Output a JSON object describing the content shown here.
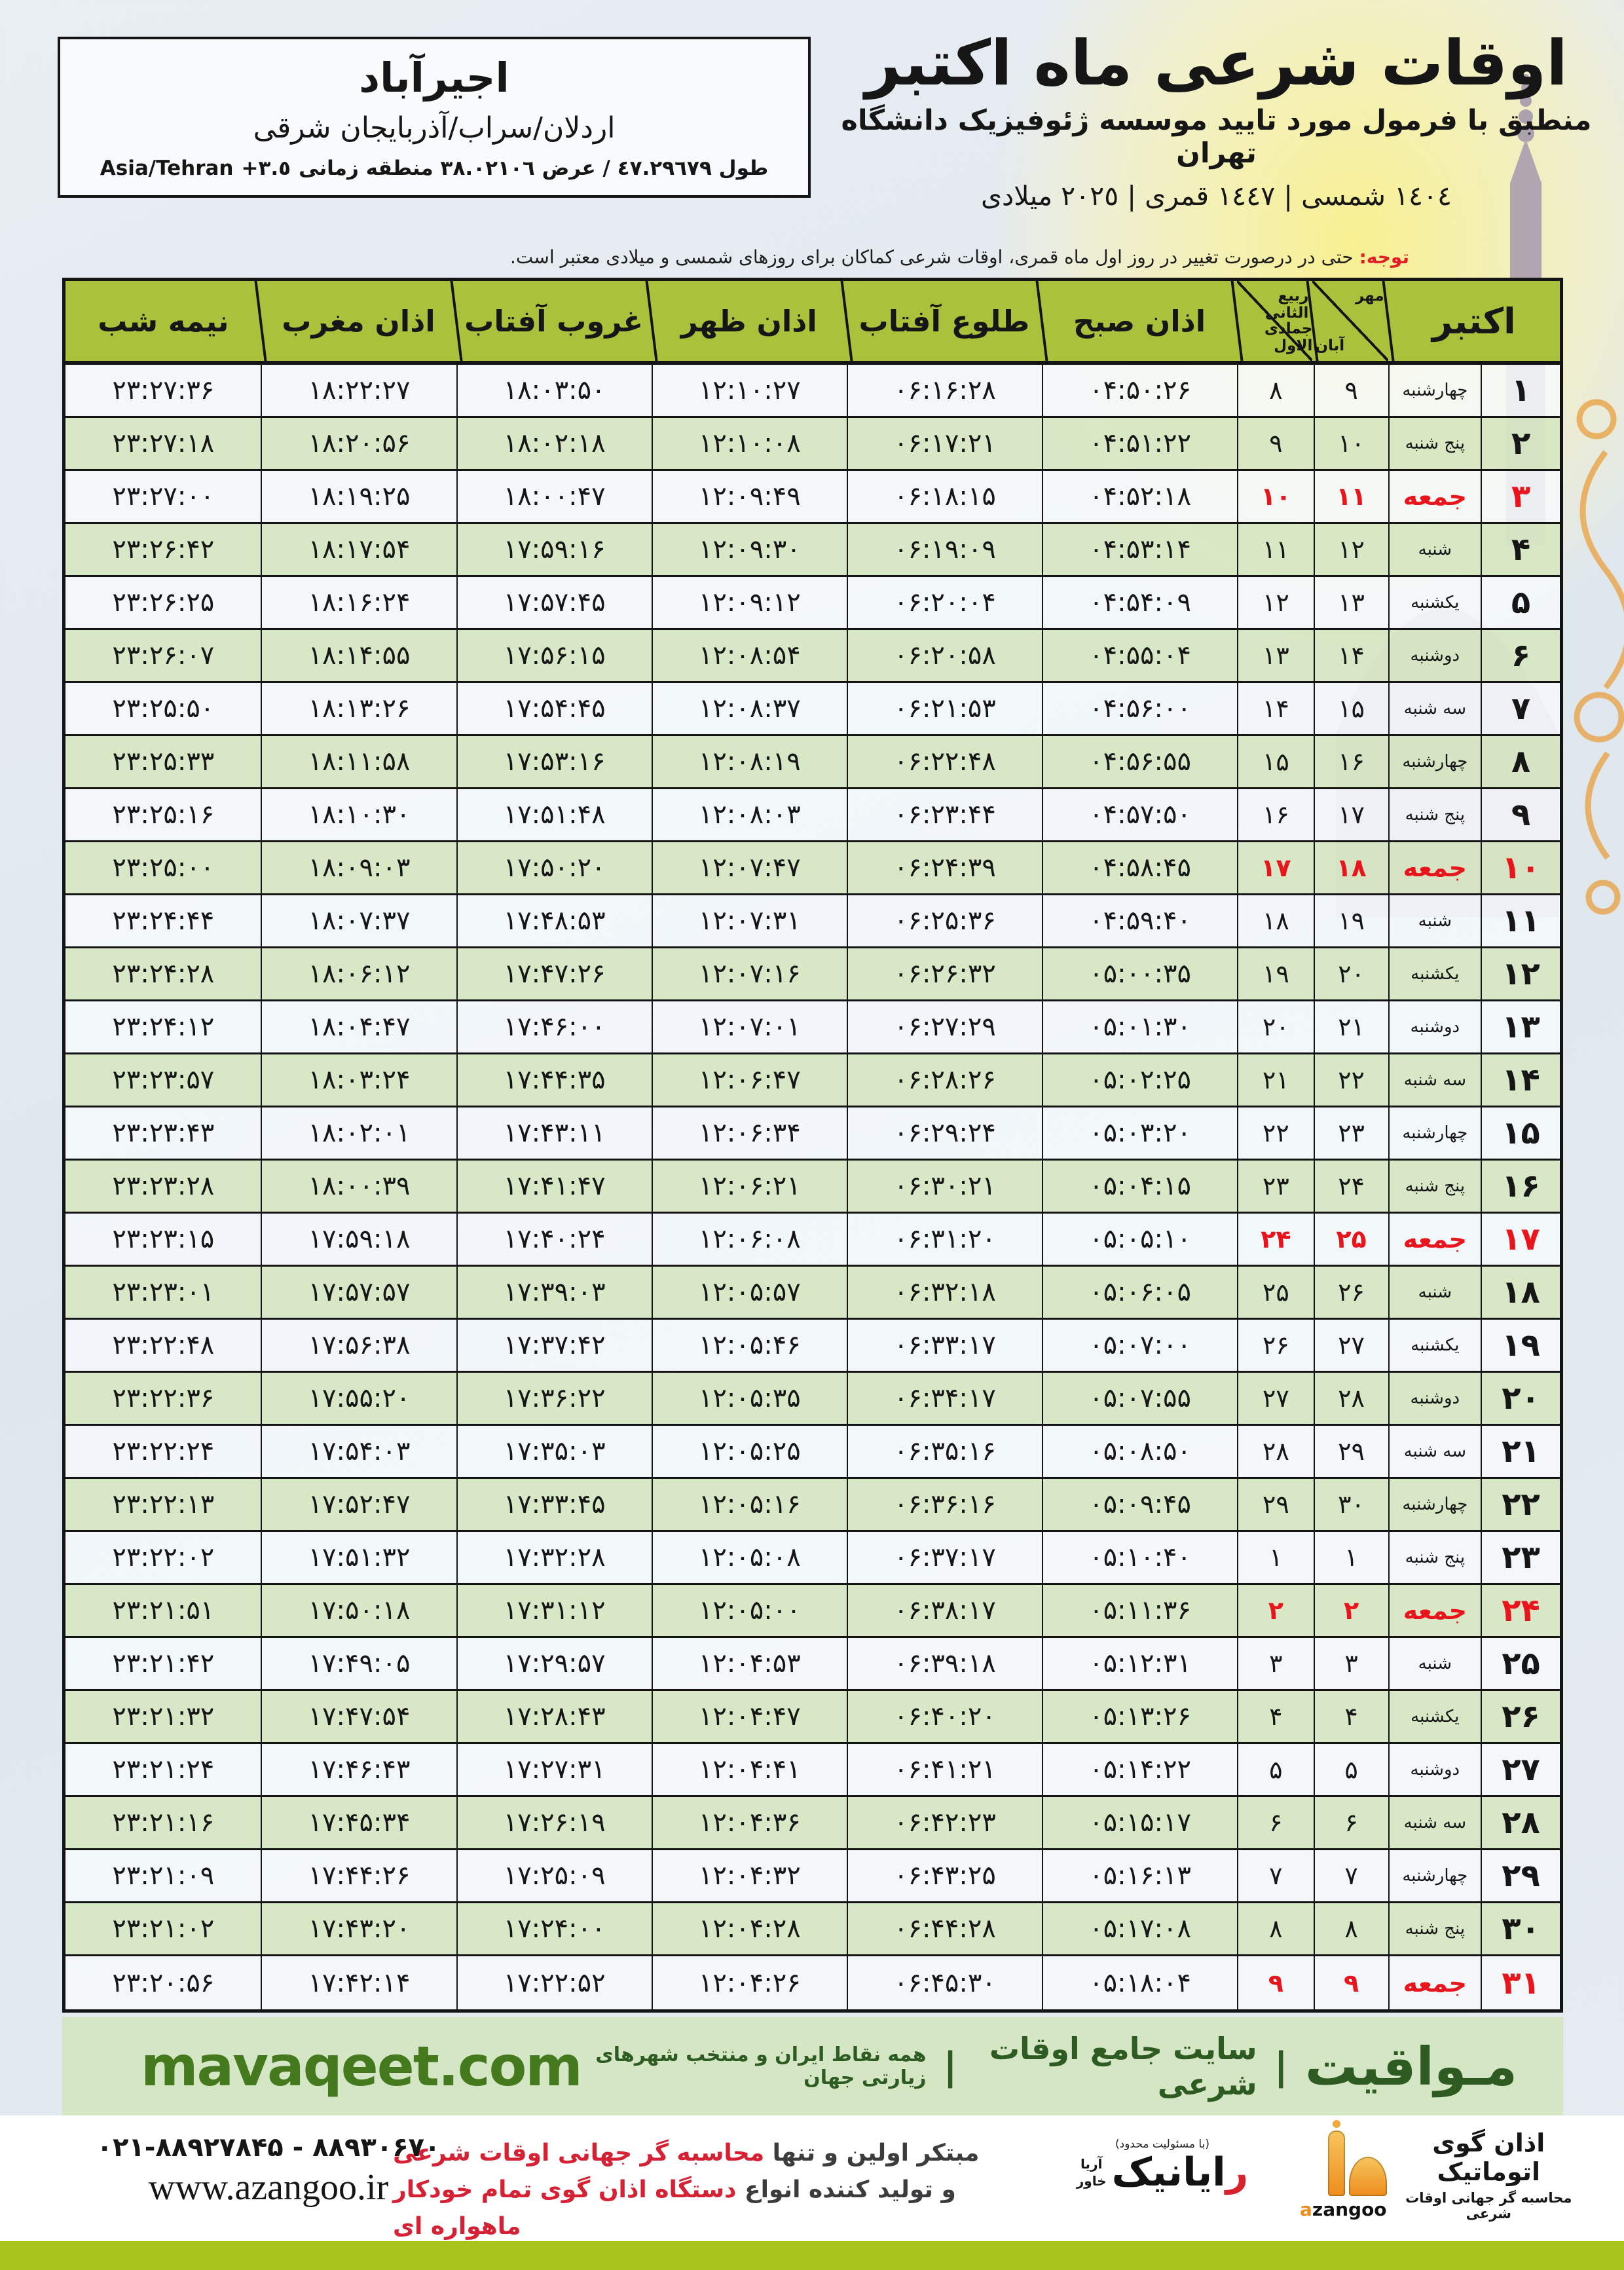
{
  "location_box": {
    "name": "اجیرآباد",
    "region": "اردلان/سراب/آذربایجان شرقی",
    "coords_text": "طول ٤٧.٢٩٦٧٩ / عرض ٣٨.٠٢١٠٦ منطقه زمانی",
    "timezone_offset": "+٣.٥",
    "timezone_name": "Asia/Tehran"
  },
  "title": {
    "main": "اوقات شرعی ماه اکتبر",
    "subtitle": "منطبق با فرمول مورد تایید موسسه ژئوفیزیک دانشگاه تهران",
    "years": "١٤٠٤ شمسی | ١٤٤٧ قمری | ٢٠٢٥ میلادی"
  },
  "notice": {
    "label": "توجه:",
    "text": " حتی در درصورت تغییر در روز اول ماه قمری، اوقات شرعی کماکان برای روزهای شمسی و میلادی معتبر است."
  },
  "table": {
    "headers": {
      "gregorian": "اکتبر",
      "persian_top": "مهر",
      "persian_bottom": "آبان",
      "hijri_top": "ربیع الثانی",
      "hijri_bottom": "جمادی الاول",
      "fajr": "اذان صبح",
      "sunrise": "طلوع آفتاب",
      "dhuhr": "اذان ظهر",
      "sunset": "غروب آفتاب",
      "maghrib": "اذان مغرب",
      "midnight": "نیمه شب"
    },
    "rows": [
      {
        "day": "۱",
        "weekday": "چهارشنبه",
        "pday": "۹",
        "hday": "۸",
        "fajr": "۰۴:۵۰:۲۶",
        "sunrise": "۰۶:۱۶:۲۸",
        "dhuhr": "۱۲:۱۰:۲۷",
        "sunset": "۱۸:۰۳:۵۰",
        "maghrib": "۱۸:۲۲:۲۷",
        "midnight": "۲۳:۲۷:۳۶",
        "friday": false
      },
      {
        "day": "۲",
        "weekday": "پنج شنبه",
        "pday": "۱۰",
        "hday": "۹",
        "fajr": "۰۴:۵۱:۲۲",
        "sunrise": "۰۶:۱۷:۲۱",
        "dhuhr": "۱۲:۱۰:۰۸",
        "sunset": "۱۸:۰۲:۱۸",
        "maghrib": "۱۸:۲۰:۵۶",
        "midnight": "۲۳:۲۷:۱۸",
        "friday": false
      },
      {
        "day": "۳",
        "weekday": "جمعه",
        "pday": "۱۱",
        "hday": "۱۰",
        "fajr": "۰۴:۵۲:۱۸",
        "sunrise": "۰۶:۱۸:۱۵",
        "dhuhr": "۱۲:۰۹:۴۹",
        "sunset": "۱۸:۰۰:۴۷",
        "maghrib": "۱۸:۱۹:۲۵",
        "midnight": "۲۳:۲۷:۰۰",
        "friday": true
      },
      {
        "day": "۴",
        "weekday": "شنبه",
        "pday": "۱۲",
        "hday": "۱۱",
        "fajr": "۰۴:۵۳:۱۴",
        "sunrise": "۰۶:۱۹:۰۹",
        "dhuhr": "۱۲:۰۹:۳۰",
        "sunset": "۱۷:۵۹:۱۶",
        "maghrib": "۱۸:۱۷:۵۴",
        "midnight": "۲۳:۲۶:۴۲",
        "friday": false
      },
      {
        "day": "۵",
        "weekday": "یکشنبه",
        "pday": "۱۳",
        "hday": "۱۲",
        "fajr": "۰۴:۵۴:۰۹",
        "sunrise": "۰۶:۲۰:۰۴",
        "dhuhr": "۱۲:۰۹:۱۲",
        "sunset": "۱۷:۵۷:۴۵",
        "maghrib": "۱۸:۱۶:۲۴",
        "midnight": "۲۳:۲۶:۲۵",
        "friday": false
      },
      {
        "day": "۶",
        "weekday": "دوشنبه",
        "pday": "۱۴",
        "hday": "۱۳",
        "fajr": "۰۴:۵۵:۰۴",
        "sunrise": "۰۶:۲۰:۵۸",
        "dhuhr": "۱۲:۰۸:۵۴",
        "sunset": "۱۷:۵۶:۱۵",
        "maghrib": "۱۸:۱۴:۵۵",
        "midnight": "۲۳:۲۶:۰۷",
        "friday": false
      },
      {
        "day": "۷",
        "weekday": "سه شنبه",
        "pday": "۱۵",
        "hday": "۱۴",
        "fajr": "۰۴:۵۶:۰۰",
        "sunrise": "۰۶:۲۱:۵۳",
        "dhuhr": "۱۲:۰۸:۳۷",
        "sunset": "۱۷:۵۴:۴۵",
        "maghrib": "۱۸:۱۳:۲۶",
        "midnight": "۲۳:۲۵:۵۰",
        "friday": false
      },
      {
        "day": "۸",
        "weekday": "چهارشنبه",
        "pday": "۱۶",
        "hday": "۱۵",
        "fajr": "۰۴:۵۶:۵۵",
        "sunrise": "۰۶:۲۲:۴۸",
        "dhuhr": "۱۲:۰۸:۱۹",
        "sunset": "۱۷:۵۳:۱۶",
        "maghrib": "۱۸:۱۱:۵۸",
        "midnight": "۲۳:۲۵:۳۳",
        "friday": false
      },
      {
        "day": "۹",
        "weekday": "پنج شنبه",
        "pday": "۱۷",
        "hday": "۱۶",
        "fajr": "۰۴:۵۷:۵۰",
        "sunrise": "۰۶:۲۳:۴۴",
        "dhuhr": "۱۲:۰۸:۰۳",
        "sunset": "۱۷:۵۱:۴۸",
        "maghrib": "۱۸:۱۰:۳۰",
        "midnight": "۲۳:۲۵:۱۶",
        "friday": false
      },
      {
        "day": "۱۰",
        "weekday": "جمعه",
        "pday": "۱۸",
        "hday": "۱۷",
        "fajr": "۰۴:۵۸:۴۵",
        "sunrise": "۰۶:۲۴:۳۹",
        "dhuhr": "۱۲:۰۷:۴۷",
        "sunset": "۱۷:۵۰:۲۰",
        "maghrib": "۱۸:۰۹:۰۳",
        "midnight": "۲۳:۲۵:۰۰",
        "friday": true
      },
      {
        "day": "۱۱",
        "weekday": "شنبه",
        "pday": "۱۹",
        "hday": "۱۸",
        "fajr": "۰۴:۵۹:۴۰",
        "sunrise": "۰۶:۲۵:۳۶",
        "dhuhr": "۱۲:۰۷:۳۱",
        "sunset": "۱۷:۴۸:۵۳",
        "maghrib": "۱۸:۰۷:۳۷",
        "midnight": "۲۳:۲۴:۴۴",
        "friday": false
      },
      {
        "day": "۱۲",
        "weekday": "یکشنبه",
        "pday": "۲۰",
        "hday": "۱۹",
        "fajr": "۰۵:۰۰:۳۵",
        "sunrise": "۰۶:۲۶:۳۲",
        "dhuhr": "۱۲:۰۷:۱۶",
        "sunset": "۱۷:۴۷:۲۶",
        "maghrib": "۱۸:۰۶:۱۲",
        "midnight": "۲۳:۲۴:۲۸",
        "friday": false
      },
      {
        "day": "۱۳",
        "weekday": "دوشنبه",
        "pday": "۲۱",
        "hday": "۲۰",
        "fajr": "۰۵:۰۱:۳۰",
        "sunrise": "۰۶:۲۷:۲۹",
        "dhuhr": "۱۲:۰۷:۰۱",
        "sunset": "۱۷:۴۶:۰۰",
        "maghrib": "۱۸:۰۴:۴۷",
        "midnight": "۲۳:۲۴:۱۲",
        "friday": false
      },
      {
        "day": "۱۴",
        "weekday": "سه شنبه",
        "pday": "۲۲",
        "hday": "۲۱",
        "fajr": "۰۵:۰۲:۲۵",
        "sunrise": "۰۶:۲۸:۲۶",
        "dhuhr": "۱۲:۰۶:۴۷",
        "sunset": "۱۷:۴۴:۳۵",
        "maghrib": "۱۸:۰۳:۲۴",
        "midnight": "۲۳:۲۳:۵۷",
        "friday": false
      },
      {
        "day": "۱۵",
        "weekday": "چهارشنبه",
        "pday": "۲۳",
        "hday": "۲۲",
        "fajr": "۰۵:۰۳:۲۰",
        "sunrise": "۰۶:۲۹:۲۴",
        "dhuhr": "۱۲:۰۶:۳۴",
        "sunset": "۱۷:۴۳:۱۱",
        "maghrib": "۱۸:۰۲:۰۱",
        "midnight": "۲۳:۲۳:۴۳",
        "friday": false
      },
      {
        "day": "۱۶",
        "weekday": "پنج شنبه",
        "pday": "۲۴",
        "hday": "۲۳",
        "fajr": "۰۵:۰۴:۱۵",
        "sunrise": "۰۶:۳۰:۲۱",
        "dhuhr": "۱۲:۰۶:۲۱",
        "sunset": "۱۷:۴۱:۴۷",
        "maghrib": "۱۸:۰۰:۳۹",
        "midnight": "۲۳:۲۳:۲۸",
        "friday": false
      },
      {
        "day": "۱۷",
        "weekday": "جمعه",
        "pday": "۲۵",
        "hday": "۲۴",
        "fajr": "۰۵:۰۵:۱۰",
        "sunrise": "۰۶:۳۱:۲۰",
        "dhuhr": "۱۲:۰۶:۰۸",
        "sunset": "۱۷:۴۰:۲۴",
        "maghrib": "۱۷:۵۹:۱۸",
        "midnight": "۲۳:۲۳:۱۵",
        "friday": true
      },
      {
        "day": "۱۸",
        "weekday": "شنبه",
        "pday": "۲۶",
        "hday": "۲۵",
        "fajr": "۰۵:۰۶:۰۵",
        "sunrise": "۰۶:۳۲:۱۸",
        "dhuhr": "۱۲:۰۵:۵۷",
        "sunset": "۱۷:۳۹:۰۳",
        "maghrib": "۱۷:۵۷:۵۷",
        "midnight": "۲۳:۲۳:۰۱",
        "friday": false
      },
      {
        "day": "۱۹",
        "weekday": "یکشنبه",
        "pday": "۲۷",
        "hday": "۲۶",
        "fajr": "۰۵:۰۷:۰۰",
        "sunrise": "۰۶:۳۳:۱۷",
        "dhuhr": "۱۲:۰۵:۴۶",
        "sunset": "۱۷:۳۷:۴۲",
        "maghrib": "۱۷:۵۶:۳۸",
        "midnight": "۲۳:۲۲:۴۸",
        "friday": false
      },
      {
        "day": "۲۰",
        "weekday": "دوشنبه",
        "pday": "۲۸",
        "hday": "۲۷",
        "fajr": "۰۵:۰۷:۵۵",
        "sunrise": "۰۶:۳۴:۱۷",
        "dhuhr": "۱۲:۰۵:۳۵",
        "sunset": "۱۷:۳۶:۲۲",
        "maghrib": "۱۷:۵۵:۲۰",
        "midnight": "۲۳:۲۲:۳۶",
        "friday": false
      },
      {
        "day": "۲۱",
        "weekday": "سه شنبه",
        "pday": "۲۹",
        "hday": "۲۸",
        "fajr": "۰۵:۰۸:۵۰",
        "sunrise": "۰۶:۳۵:۱۶",
        "dhuhr": "۱۲:۰۵:۲۵",
        "sunset": "۱۷:۳۵:۰۳",
        "maghrib": "۱۷:۵۴:۰۳",
        "midnight": "۲۳:۲۲:۲۴",
        "friday": false
      },
      {
        "day": "۲۲",
        "weekday": "چهارشنبه",
        "pday": "۳۰",
        "hday": "۲۹",
        "fajr": "۰۵:۰۹:۴۵",
        "sunrise": "۰۶:۳۶:۱۶",
        "dhuhr": "۱۲:۰۵:۱۶",
        "sunset": "۱۷:۳۳:۴۵",
        "maghrib": "۱۷:۵۲:۴۷",
        "midnight": "۲۳:۲۲:۱۳",
        "friday": false
      },
      {
        "day": "۲۳",
        "weekday": "پنج شنبه",
        "pday": "۱",
        "hday": "۱",
        "fajr": "۰۵:۱۰:۴۰",
        "sunrise": "۰۶:۳۷:۱۷",
        "dhuhr": "۱۲:۰۵:۰۸",
        "sunset": "۱۷:۳۲:۲۸",
        "maghrib": "۱۷:۵۱:۳۲",
        "midnight": "۲۳:۲۲:۰۲",
        "friday": false
      },
      {
        "day": "۲۴",
        "weekday": "جمعه",
        "pday": "۲",
        "hday": "۲",
        "fajr": "۰۵:۱۱:۳۶",
        "sunrise": "۰۶:۳۸:۱۷",
        "dhuhr": "۱۲:۰۵:۰۰",
        "sunset": "۱۷:۳۱:۱۲",
        "maghrib": "۱۷:۵۰:۱۸",
        "midnight": "۲۳:۲۱:۵۱",
        "friday": true
      },
      {
        "day": "۲۵",
        "weekday": "شنبه",
        "pday": "۳",
        "hday": "۳",
        "fajr": "۰۵:۱۲:۳۱",
        "sunrise": "۰۶:۳۹:۱۸",
        "dhuhr": "۱۲:۰۴:۵۳",
        "sunset": "۱۷:۲۹:۵۷",
        "maghrib": "۱۷:۴۹:۰۵",
        "midnight": "۲۳:۲۱:۴۲",
        "friday": false
      },
      {
        "day": "۲۶",
        "weekday": "یکشنبه",
        "pday": "۴",
        "hday": "۴",
        "fajr": "۰۵:۱۳:۲۶",
        "sunrise": "۰۶:۴۰:۲۰",
        "dhuhr": "۱۲:۰۴:۴۷",
        "sunset": "۱۷:۲۸:۴۳",
        "maghrib": "۱۷:۴۷:۵۴",
        "midnight": "۲۳:۲۱:۳۲",
        "friday": false
      },
      {
        "day": "۲۷",
        "weekday": "دوشنبه",
        "pday": "۵",
        "hday": "۵",
        "fajr": "۰۵:۱۴:۲۲",
        "sunrise": "۰۶:۴۱:۲۱",
        "dhuhr": "۱۲:۰۴:۴۱",
        "sunset": "۱۷:۲۷:۳۱",
        "maghrib": "۱۷:۴۶:۴۳",
        "midnight": "۲۳:۲۱:۲۴",
        "friday": false
      },
      {
        "day": "۲۸",
        "weekday": "سه شنبه",
        "pday": "۶",
        "hday": "۶",
        "fajr": "۰۵:۱۵:۱۷",
        "sunrise": "۰۶:۴۲:۲۳",
        "dhuhr": "۱۲:۰۴:۳۶",
        "sunset": "۱۷:۲۶:۱۹",
        "maghrib": "۱۷:۴۵:۳۴",
        "midnight": "۲۳:۲۱:۱۶",
        "friday": false
      },
      {
        "day": "۲۹",
        "weekday": "چهارشنبه",
        "pday": "۷",
        "hday": "۷",
        "fajr": "۰۵:۱۶:۱۳",
        "sunrise": "۰۶:۴۳:۲۵",
        "dhuhr": "۱۲:۰۴:۳۲",
        "sunset": "۱۷:۲۵:۰۹",
        "maghrib": "۱۷:۴۴:۲۶",
        "midnight": "۲۳:۲۱:۰۹",
        "friday": false
      },
      {
        "day": "۳۰",
        "weekday": "پنج شنبه",
        "pday": "۸",
        "hday": "۸",
        "fajr": "۰۵:۱۷:۰۸",
        "sunrise": "۰۶:۴۴:۲۸",
        "dhuhr": "۱۲:۰۴:۲۸",
        "sunset": "۱۷:۲۴:۰۰",
        "maghrib": "۱۷:۴۳:۲۰",
        "midnight": "۲۳:۲۱:۰۲",
        "friday": false
      },
      {
        "day": "۳۱",
        "weekday": "جمعه",
        "pday": "۹",
        "hday": "۹",
        "fajr": "۰۵:۱۸:۰۴",
        "sunrise": "۰۶:۴۵:۳۰",
        "dhuhr": "۱۲:۰۴:۲۶",
        "sunset": "۱۷:۲۲:۵۲",
        "maghrib": "۱۷:۴۲:۱۴",
        "midnight": "۲۳:۲۰:۵۶",
        "friday": true
      }
    ]
  },
  "band": {
    "brand": "مـواقیت",
    "separator": "|",
    "site_type": "سایت جامع اوقات شرعی",
    "description": "همه نقاط ایران و منتخب شهرهای زیارتی جهان",
    "url": "mavaqeet.com"
  },
  "bottom": {
    "phone": "۰۲۱-۸۸۹۲۷۸۴۵ - ۸۸۹۳۰۶۷۰",
    "website": "www.azangoo.ir",
    "slogan1_dark": "مبتکر اولین و تنها ",
    "slogan1_red": "محاسبه گر جهانی اوقات شرعی",
    "slogan2_dark": "و تولید کننده انواع ",
    "slogan2_red": "دستگاه اذان گوی تمام خودکار ماهواره ای",
    "rayanik_resp": "(با مسئولیت محدود)",
    "rayanik_initial": "ر",
    "rayanik_rest": "ایانیک",
    "rayanik_side1": "آریا",
    "rayanik_side2": "خاور",
    "azangoo_line1": "اذان گوی اتوماتیک",
    "azangoo_line2": "محاسبه گر جهانی اوقات شرعی",
    "azangoo_latin_a": "a",
    "azangoo_latin_rest": "zangoo"
  },
  "colors": {
    "header_green": "#a9c13b",
    "row_alt_green": "#d7e7c2",
    "band_green": "#d5e6c5",
    "band_text_green": "#2d5b21",
    "url_green": "#44791e",
    "friday_red": "#e8151c",
    "slogan_red": "#d62033",
    "notice_red": "#e31d25",
    "bottom_bar_olive": "#a8c31a",
    "azangoo_orange": "#ee8d1d"
  }
}
